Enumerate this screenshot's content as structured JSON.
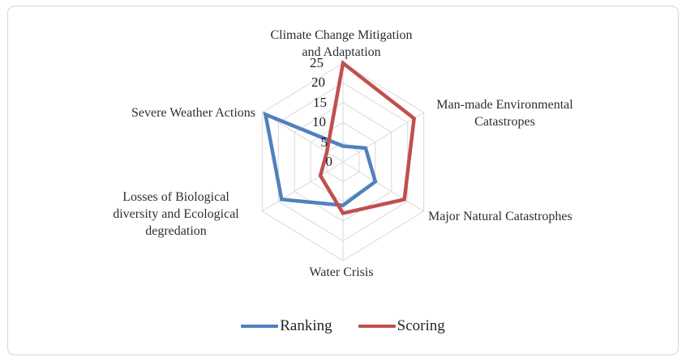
{
  "chart_data": {
    "type": "radar",
    "title": "",
    "categories": [
      "Climate Change Mitigation\nand Adaptation",
      "Man-made Environmental\nCatastropes",
      "Major Natural Catastrophes",
      "Water Crisis",
      "Losses of Biological\ndiversity and Ecological\ndegredation",
      "Severe Weather Actions"
    ],
    "series": [
      {
        "name": "Ranking",
        "color": "#4F81BD",
        "values": [
          4,
          7,
          10,
          11,
          19,
          24
        ]
      },
      {
        "name": "Scoring",
        "color": "#C0504D",
        "values": [
          25,
          22,
          19,
          13,
          7,
          5
        ]
      }
    ],
    "ticks": [
      "25",
      "20",
      "15",
      "10",
      "5",
      "0"
    ],
    "axis_range": [
      0,
      25
    ],
    "grid_step": 5,
    "grid_color": "#D9D9D9",
    "grid_on": true,
    "legend_position": "bottom"
  }
}
